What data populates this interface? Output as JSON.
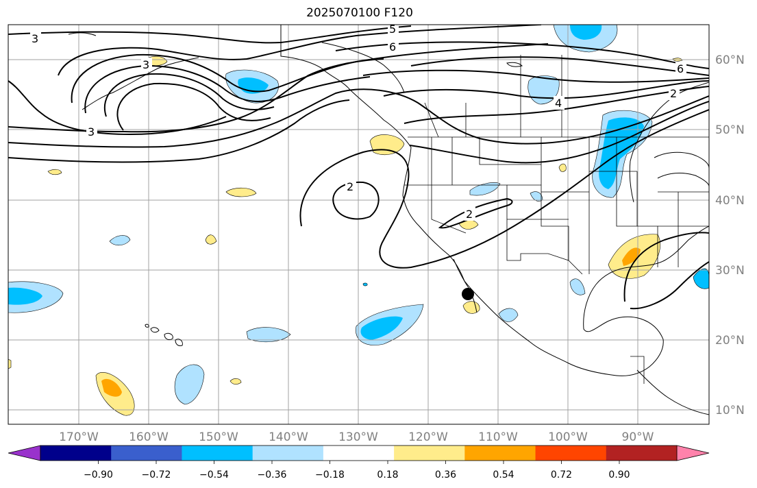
{
  "title": "2025070100 F120",
  "lat_labels": [
    "60°N",
    "50°N",
    "40°N",
    "30°N",
    "20°N",
    "10°N"
  ],
  "lon_labels": [
    "170°W",
    "160°W",
    "150°W",
    "140°W",
    "130°W",
    "120°W",
    "110°W",
    "100°W",
    "90°W"
  ],
  "contour_labels": [
    "3",
    "3",
    "5",
    "6",
    "6",
    "2",
    "4",
    "3",
    "2",
    "2"
  ],
  "colorbar": {
    "ticks": [
      "−0.90",
      "−0.72",
      "−0.54",
      "−0.36",
      "−0.18",
      "0.18",
      "0.36",
      "0.54",
      "0.72",
      "0.90"
    ],
    "colors": {
      "under": "#9932cc",
      "bins": [
        "#00008b",
        "#3a5fcd",
        "#00bfff",
        "#b0e2ff",
        "#ffffff",
        "#ffec8b",
        "#ffa500",
        "#ff4500",
        "#b22222"
      ],
      "over": "#ff82ab"
    }
  },
  "marker": "black-dot"
}
